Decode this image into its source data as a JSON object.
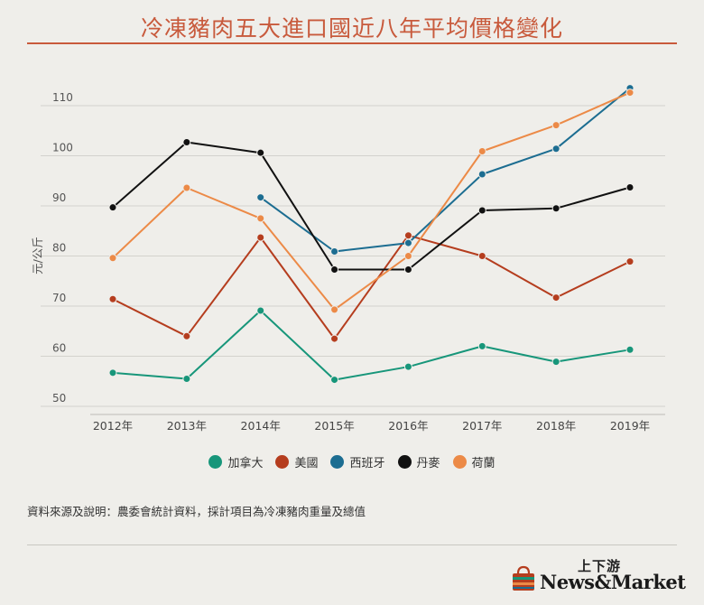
{
  "title": "冷凍豬肉五大進口國近八年平均價格變化",
  "source_note": "資料來源及說明：農委會統計資料，採計項目為冷凍豬肉重量及總值",
  "logo": {
    "cn": "上下游",
    "en": "News&Market"
  },
  "colors": {
    "title": "#c85a3c",
    "background": "#efeeea",
    "grid": "#d3d2cd"
  },
  "chart_data": {
    "type": "line",
    "title": "冷凍豬肉五大進口國近八年平均價格變化",
    "xlabel": "",
    "ylabel": "元/公斤",
    "categories": [
      "2012年",
      "2013年",
      "2014年",
      "2015年",
      "2016年",
      "2017年",
      "2018年",
      "2019年"
    ],
    "ylim": [
      50,
      110
    ],
    "yticks": [
      50,
      60,
      70,
      80,
      90,
      100,
      110
    ],
    "grid": true,
    "legend_position": "bottom",
    "series": [
      {
        "name": "加拿大",
        "color": "#17967a",
        "values": [
          56.7,
          55.5,
          69.1,
          55.3,
          57.9,
          62.0,
          58.9,
          61.3
        ]
      },
      {
        "name": "美國",
        "color": "#b53d1e",
        "values": [
          71.4,
          64.0,
          83.7,
          63.5,
          84.1,
          80.0,
          71.7,
          78.9
        ]
      },
      {
        "name": "西班牙",
        "color": "#1c6d91",
        "values": [
          null,
          null,
          91.7,
          80.9,
          82.6,
          96.3,
          101.4,
          113.5
        ]
      },
      {
        "name": "丹麥",
        "color": "#111111",
        "values": [
          89.7,
          102.7,
          100.6,
          77.3,
          77.3,
          89.1,
          89.5,
          93.7
        ]
      },
      {
        "name": "荷蘭",
        "color": "#ec8a47",
        "values": [
          79.6,
          93.6,
          87.5,
          69.3,
          80.0,
          100.9,
          106.1,
          112.6
        ]
      }
    ]
  }
}
